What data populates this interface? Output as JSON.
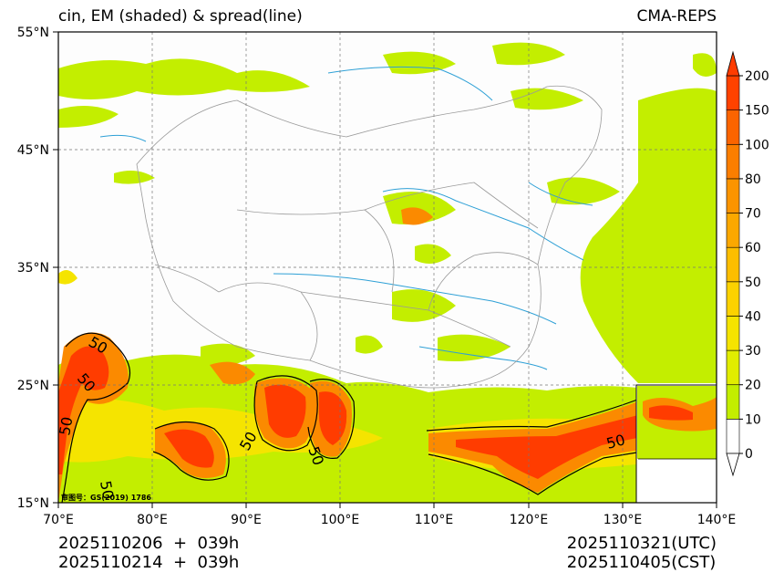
{
  "header": {
    "title": "cin, EM (shaded) & spread(line)",
    "model": "CMA-REPS"
  },
  "map": {
    "lat_labels": [
      "55°N",
      "45°N",
      "35°N",
      "25°N",
      "15°N"
    ],
    "lon_labels": [
      "70°E",
      "80°E",
      "90°E",
      "100°E",
      "110°E",
      "120°E",
      "130°E",
      "140°E"
    ],
    "approval_number": "审图号：GS(2019) 1786",
    "contour_label": "50",
    "colors": {
      "shade_low": "#c3ee00",
      "shade_mid": "#f5e400",
      "shade_orange": "#fb8a00",
      "shade_red": "#ff3c00",
      "rivers": "#2ea0d6",
      "borders": "#9a9a9a"
    }
  },
  "colorbar": {
    "labels": [
      "0",
      "10",
      "20",
      "30",
      "40",
      "50",
      "60",
      "70",
      "80",
      "100",
      "150",
      "200"
    ],
    "colors": [
      "#ffffff",
      "#c3ee00",
      "#e1ed00",
      "#f5e400",
      "#fcd200",
      "#fcbe00",
      "#fba800",
      "#fb9400",
      "#fb7e00",
      "#fb6400",
      "#ff4200"
    ],
    "extend_color": "#ff3c00"
  },
  "footer": {
    "init_utc": "2025110206  +  039h",
    "init_cst": "2025110214  +  039h",
    "valid_utc": "2025110321(UTC)",
    "valid_cst": "2025110405(CST)"
  }
}
